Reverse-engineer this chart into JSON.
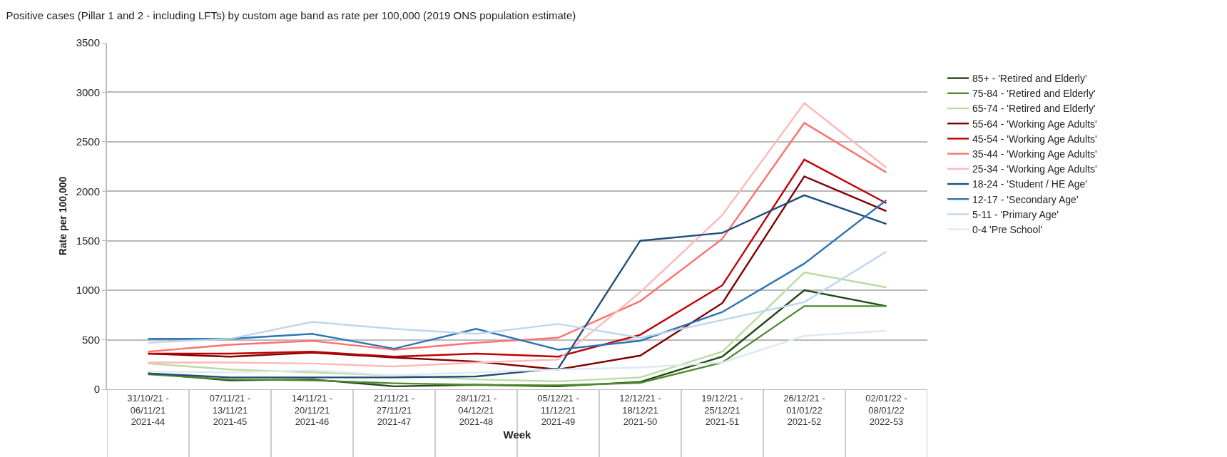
{
  "chart_data": {
    "type": "line",
    "title": "Positive cases (Pillar 1 and 2 - including LFTs) by custom age band as rate per 100,000 (2019 ONS population estimate)",
    "xlabel": "Week",
    "ylabel": "Rate per 100,000",
    "categories": [
      "31/10/21 -\n06/11/21\n2021-44",
      "07/11/21 -\n13/11/21\n2021-45",
      "14/11/21 -\n20/11/21\n2021-46",
      "21/11/21 -\n27/11/21\n2021-47",
      "28/11/21 -\n04/12/21\n2021-48",
      "05/12/21 -\n11/12/21\n2021-49",
      "12/12/21 -\n18/12/21\n2021-50",
      "19/12/21 -\n25/12/21\n2021-51",
      "26/12/21 -\n01/01/22\n2021-52",
      "02/01/22 -\n08/01/22\n2022-53"
    ],
    "series": [
      {
        "name": "85+ - 'Retired and Elderly'",
        "color": "#1e4a13",
        "values": [
          160,
          90,
          100,
          30,
          45,
          30,
          75,
          330,
          1000,
          840
        ]
      },
      {
        "name": "75-84 - 'Retired and Elderly'",
        "color": "#4f8a2e",
        "values": [
          150,
          100,
          90,
          60,
          45,
          40,
          65,
          270,
          840,
          840
        ]
      },
      {
        "name": "65-74 - 'Retired and Elderly'",
        "color": "#b9dca0",
        "values": [
          260,
          200,
          170,
          140,
          100,
          80,
          120,
          380,
          1180,
          1030
        ]
      },
      {
        "name": "55-64 - 'Working Age Adults'",
        "color": "#7f0000",
        "values": [
          360,
          330,
          370,
          320,
          280,
          200,
          340,
          870,
          2150,
          1800
        ]
      },
      {
        "name": "45-54 - 'Working Age Adults'",
        "color": "#c00000",
        "values": [
          360,
          360,
          380,
          330,
          360,
          330,
          550,
          1050,
          2320,
          1880
        ]
      },
      {
        "name": "35-44 - 'Working Age Adults'",
        "color": "#ff7070",
        "values": [
          380,
          450,
          490,
          400,
          470,
          520,
          890,
          1520,
          2690,
          2190
        ]
      },
      {
        "name": "25-34 - 'Working Age Adults'",
        "color": "#ffb8b8",
        "values": [
          270,
          270,
          260,
          230,
          270,
          300,
          980,
          1760,
          2890,
          2240
        ]
      },
      {
        "name": "18-24 - 'Student / HE Age'",
        "color": "#1f4e79",
        "values": [
          160,
          120,
          120,
          120,
          130,
          210,
          1500,
          1580,
          1960,
          1670
        ]
      },
      {
        "name": "12-17 - 'Secondary Age'",
        "color": "#2e75b6",
        "values": [
          510,
          510,
          560,
          410,
          610,
          400,
          490,
          780,
          1270,
          1910
        ]
      },
      {
        "name": "5-11 - 'Primary Age'",
        "color": "#bdd7ee",
        "values": [
          470,
          510,
          680,
          610,
          560,
          660,
          520,
          700,
          880,
          1390
        ]
      },
      {
        "name": "0-4 'Pre School'",
        "color": "#dde9f6",
        "values": [
          180,
          170,
          190,
          140,
          170,
          200,
          220,
          270,
          540,
          590
        ]
      }
    ],
    "ylim": [
      0,
      3500
    ],
    "yticks": [
      0,
      500,
      1000,
      1500,
      2000,
      2500,
      3000,
      3500
    ],
    "grid": "y",
    "legend": "right",
    "marker": "none",
    "line_style": "solid"
  }
}
